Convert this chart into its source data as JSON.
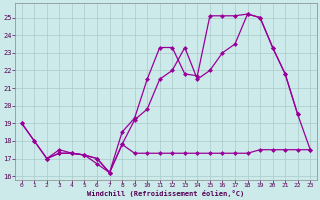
{
  "xlabel": "Windchill (Refroidissement éolien,°C)",
  "bg_color": "#cdeaea",
  "grid_color": "#aacaca",
  "line_color": "#990099",
  "xlim": [
    -0.5,
    23.5
  ],
  "ylim": [
    15.8,
    25.8
  ],
  "yticks": [
    16,
    17,
    18,
    19,
    20,
    21,
    22,
    23,
    24,
    25
  ],
  "xticks": [
    0,
    1,
    2,
    3,
    4,
    5,
    6,
    7,
    8,
    9,
    10,
    11,
    12,
    13,
    14,
    15,
    16,
    17,
    18,
    19,
    20,
    21,
    22,
    23
  ],
  "line1_x": [
    0,
    1,
    2,
    3,
    4,
    5,
    6,
    7,
    8,
    9,
    10,
    11,
    12,
    13,
    14,
    15,
    16,
    17,
    18,
    19,
    20,
    21,
    22,
    23
  ],
  "line1_y": [
    19.0,
    18.0,
    17.0,
    17.3,
    17.3,
    17.2,
    17.0,
    16.2,
    17.8,
    17.3,
    17.3,
    17.3,
    17.3,
    17.3,
    17.3,
    17.3,
    17.3,
    17.3,
    17.3,
    17.5,
    17.5,
    17.5,
    17.5,
    17.5
  ],
  "line2_x": [
    0,
    1,
    2,
    3,
    4,
    5,
    6,
    7,
    8,
    9,
    10,
    11,
    12,
    13,
    14,
    15,
    16,
    17,
    18,
    19,
    20,
    21,
    22,
    23
  ],
  "line2_y": [
    19.0,
    18.0,
    17.0,
    17.3,
    17.3,
    17.2,
    17.0,
    16.2,
    17.8,
    19.2,
    19.8,
    21.5,
    22.0,
    23.3,
    21.5,
    22.0,
    23.0,
    23.5,
    25.2,
    25.0,
    23.3,
    21.8,
    19.5,
    17.5
  ],
  "line3_x": [
    2,
    3,
    4,
    5,
    6,
    7,
    8,
    9,
    10,
    11,
    12,
    13,
    14,
    15,
    16,
    17,
    18,
    19,
    20,
    21,
    22
  ],
  "line3_y": [
    17.0,
    17.5,
    17.3,
    17.2,
    16.7,
    16.2,
    18.5,
    19.3,
    21.5,
    23.3,
    23.3,
    21.8,
    21.7,
    25.1,
    25.1,
    25.1,
    25.2,
    25.0,
    23.3,
    21.8,
    19.5
  ]
}
